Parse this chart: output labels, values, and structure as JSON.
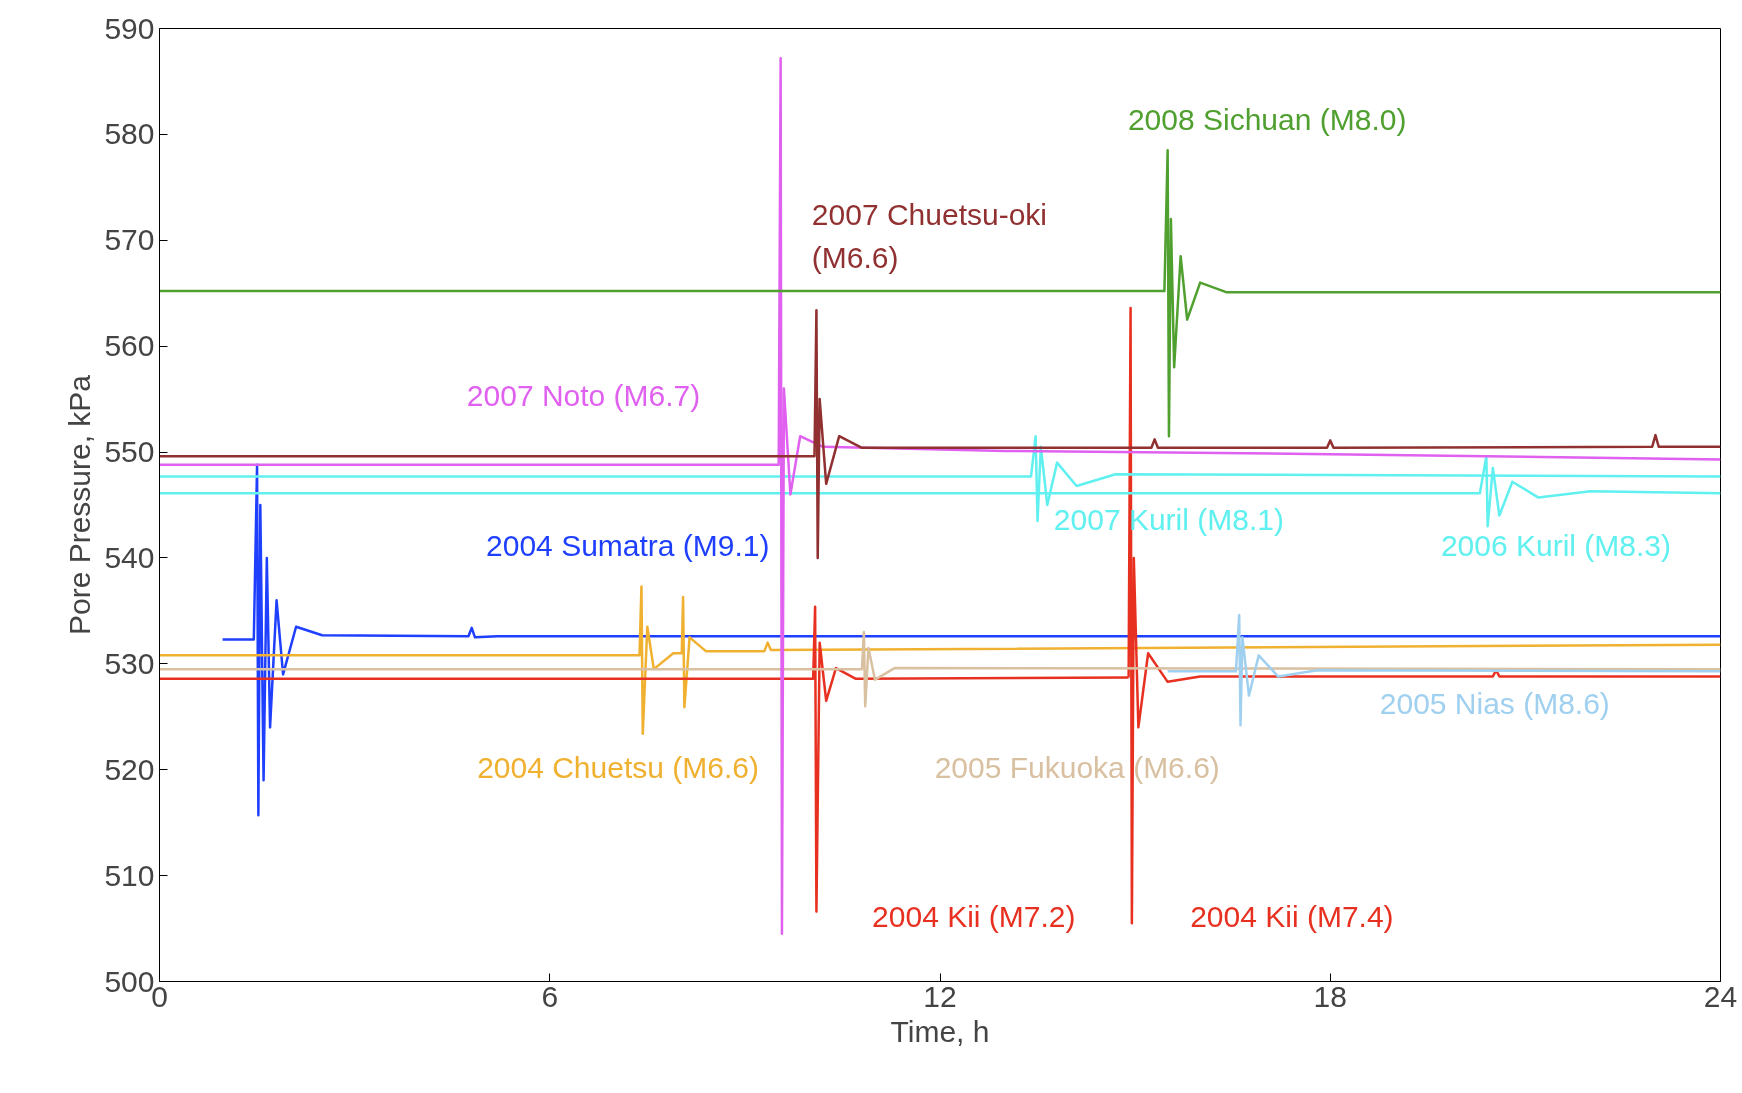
{
  "chart_data": {
    "type": "line",
    "xlabel": "Time, h",
    "ylabel": "Pore Pressure, kPa",
    "xlim": [
      0,
      24
    ],
    "ylim": [
      500,
      590
    ],
    "xticks": [
      0,
      6,
      12,
      18,
      24
    ],
    "yticks": [
      500,
      510,
      520,
      530,
      540,
      550,
      560,
      570,
      580,
      590
    ],
    "grid": false,
    "marker": "none",
    "line_style": "solid",
    "series": [
      {
        "name": "2004 Sumatra (M9.1)",
        "color": "#1f3fff",
        "x": [
          0.97,
          1.45,
          1.5,
          1.52,
          1.55,
          1.6,
          1.65,
          1.7,
          1.8,
          1.9,
          2.1,
          2.5,
          4.75,
          4.8,
          4.85,
          5.2,
          24
        ],
        "values": [
          532.3,
          532.3,
          548.8,
          515.7,
          545,
          519,
          540,
          524,
          536,
          529,
          533.5,
          532.7,
          532.6,
          533.4,
          532.5,
          532.6,
          532.6
        ]
      },
      {
        "name": "2004 Chuetsu (M6.6)",
        "color": "#f0b030",
        "x": [
          0,
          7.38,
          7.41,
          7.43,
          7.5,
          7.6,
          7.9,
          8.03,
          8.05,
          8.07,
          8.15,
          8.4,
          9.3,
          9.35,
          9.4,
          24
        ],
        "values": [
          530.8,
          530.8,
          537.3,
          523.4,
          533.5,
          529.5,
          531,
          531,
          536.3,
          525.9,
          532.5,
          531.2,
          531.2,
          532,
          531.3,
          531.8
        ]
      },
      {
        "name": "2004 Kii (M7.2)",
        "color": "#e83020",
        "x": [
          0,
          10.05,
          10.08,
          10.1,
          10.15,
          10.25,
          10.4,
          10.7,
          14.9
        ],
        "values": [
          528.6,
          528.6,
          535.4,
          506.6,
          532,
          526.5,
          529.6,
          528.6,
          528.7
        ]
      },
      {
        "name": "2004 Kii (M7.4)",
        "color": "#e83020",
        "x": [
          14.9,
          14.93,
          14.95,
          14.98,
          15.05,
          15.2,
          15.5,
          16,
          20.5,
          20.55,
          20.6,
          24
        ],
        "values": [
          528.7,
          563.6,
          505.5,
          540,
          524,
          531,
          528.3,
          528.8,
          528.8,
          529.4,
          528.8,
          528.8
        ]
      },
      {
        "name": "2005 Fukuoka (M6.6)",
        "color": "#d8c0a0",
        "x": [
          0,
          10.8,
          10.83,
          10.85,
          10.9,
          11,
          11.3,
          24
        ],
        "values": [
          529.5,
          529.5,
          533,
          526,
          531.5,
          528.5,
          529.6,
          529.5
        ]
      },
      {
        "name": "2005 Nias (M8.6)",
        "color": "#a0d0f0",
        "x": [
          15.5,
          16.55,
          16.6,
          16.62,
          16.65,
          16.75,
          16.9,
          17.2,
          17.8,
          24
        ],
        "values": [
          529.3,
          529.3,
          534.6,
          524.2,
          532.5,
          527,
          530.8,
          528.8,
          529.4,
          529.3
        ]
      },
      {
        "name": "2006 Kuril (M8.3)",
        "color": "#60f0f0",
        "x": [
          0,
          20.3,
          20.4,
          20.42,
          20.5,
          20.6,
          20.8,
          21.2,
          22,
          24
        ],
        "values": [
          546.1,
          546.1,
          549.6,
          543,
          548.5,
          544,
          547.2,
          545.7,
          546.3,
          546.1
        ]
      },
      {
        "name": "2007 Kuril (M8.1)",
        "color": "#60f0f0",
        "x": [
          0,
          13.4,
          13.47,
          13.5,
          13.55,
          13.65,
          13.8,
          14.1,
          14.7,
          24
        ],
        "values": [
          547.7,
          547.7,
          551.5,
          543.5,
          550.5,
          545,
          549,
          546.8,
          547.9,
          547.7
        ]
      },
      {
        "name": "2007 Noto (M6.7)",
        "color": "#e060f0",
        "x": [
          0,
          9.52,
          9.55,
          9.57,
          9.6,
          9.7,
          9.85,
          10.2,
          13,
          18,
          24
        ],
        "values": [
          548.8,
          548.8,
          587.2,
          504.5,
          556,
          546,
          551.5,
          550.5,
          550.1,
          549.8,
          549.3
        ]
      },
      {
        "name": "2007 Chuetsu-oki (M6.6)",
        "color": "#903030",
        "x": [
          0,
          10.07,
          10.1,
          10.12,
          10.15,
          10.25,
          10.45,
          10.8,
          15.25,
          15.3,
          15.35,
          17.95,
          18,
          18.05,
          22.95,
          23,
          23.05,
          24
        ],
        "values": [
          549.6,
          549.6,
          563.4,
          540,
          555,
          547,
          551.5,
          550.4,
          550.4,
          551.2,
          550.4,
          550.4,
          551.1,
          550.4,
          550.5,
          551.6,
          550.5,
          550.5
        ]
      },
      {
        "name": "2008 Sichuan (M8.0)",
        "color": "#50a030",
        "x": [
          0,
          15.45,
          15.5,
          15.52,
          15.55,
          15.6,
          15.7,
          15.8,
          16,
          16.4,
          24
        ],
        "values": [
          565.2,
          565.2,
          578.5,
          551.5,
          572,
          558,
          568.5,
          562.5,
          566,
          565.1,
          565.1
        ]
      }
    ]
  }
}
